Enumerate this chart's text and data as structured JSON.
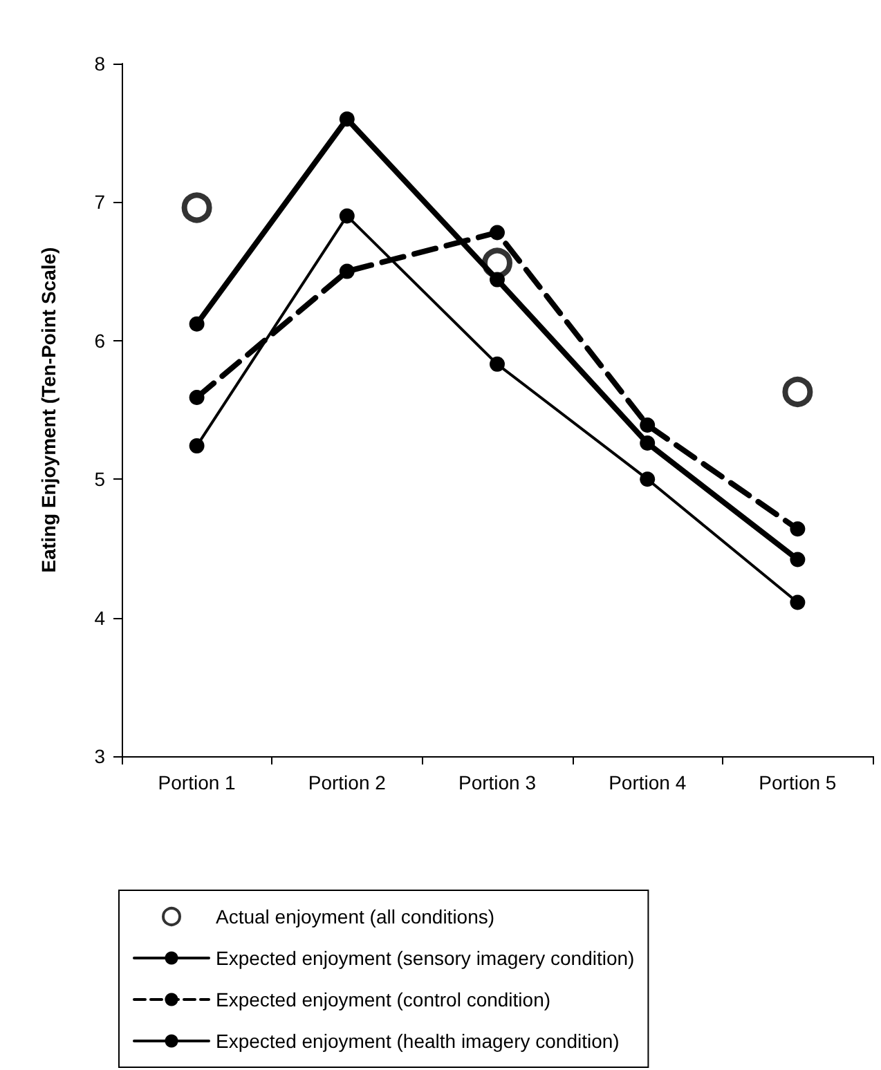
{
  "chart_data": {
    "type": "line",
    "ylabel": "Eating Enjoyment (Ten-Point Scale)",
    "categories": [
      "Portion 1",
      "Portion 2",
      "Portion 3",
      "Portion 4",
      "Portion 5"
    ],
    "series": [
      {
        "name": "Actual enjoyment (all conditions)",
        "type": "scatter",
        "color": "#000000",
        "values": [
          6.96,
          null,
          6.56,
          null,
          5.63
        ]
      },
      {
        "name": "Expected enjoyment (sensory imagery condition)",
        "color": "#000000",
        "line_style": "solid",
        "values": [
          6.12,
          7.6,
          6.44,
          5.26,
          4.42
        ]
      },
      {
        "name": "Expected enjoyment (control condition)",
        "color": "#000000",
        "line_style": "dashed",
        "values": [
          5.59,
          6.5,
          6.78,
          5.39,
          4.64
        ]
      },
      {
        "name": "Expected enjoyment (health imagery condition)",
        "color": "#000000",
        "line_style": "solid",
        "values": [
          5.24,
          6.9,
          5.83,
          5.0,
          4.11
        ]
      }
    ],
    "ylim": [
      3,
      8
    ],
    "yticks": [
      3,
      4,
      5,
      6,
      7,
      8
    ],
    "grid": false,
    "legend": "bottom",
    "marker": "circle"
  }
}
